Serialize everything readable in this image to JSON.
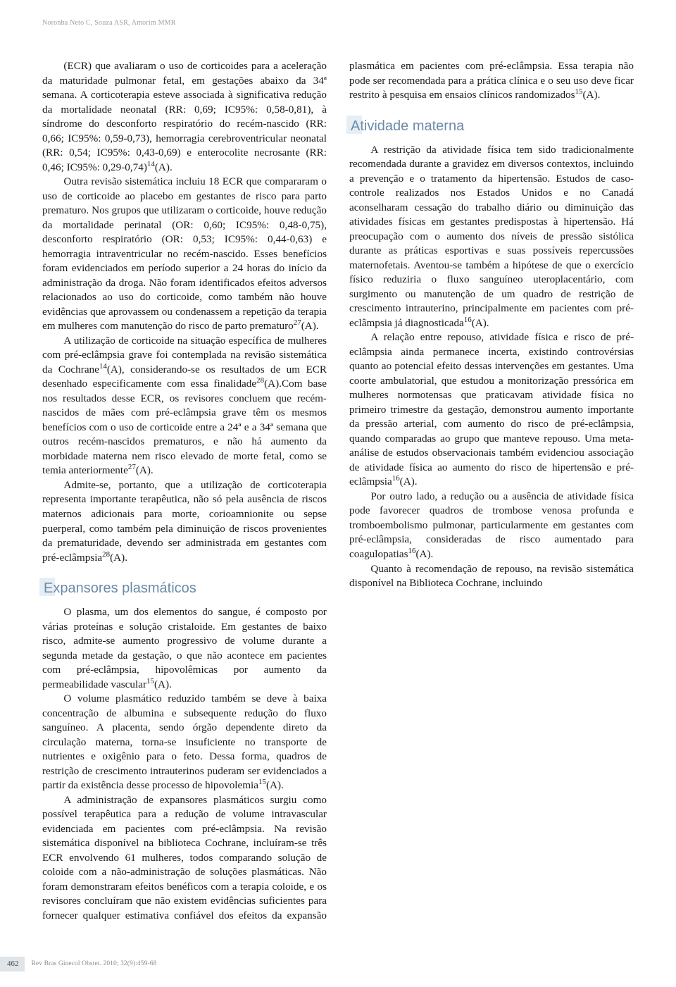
{
  "runningHead": "Noronha Neto C, Souza ASR, Amorim MMR",
  "page": "462",
  "journal": "Rev Bras Ginecol Obstet. 2010; 32(9):459-68",
  "colors": {
    "headingText": "#6b8aa8",
    "headingHighlight": "#e6eef5",
    "bodyText": "#1a1a1a",
    "runningHead": "#a0a0a0",
    "footerText": "#8a8a8a",
    "pageBox": "#dfe4e8",
    "background": "#ffffff"
  },
  "typography": {
    "bodyFont": "Garamond/Georgia serif",
    "headingFont": "Trebuchet MS / sans-serif",
    "bodySizePt": 11,
    "headingSizePt": 15,
    "runningHeadSizePt": 7,
    "footerSizePt": 7
  },
  "headings": {
    "h1": "Expansores plasmáticos",
    "h2": "Atividade materna"
  },
  "paragraphs": {
    "p1a": "(ECR) que avaliaram o uso de corticoides para a aceleração da maturidade pulmonar fetal, em gestações abaixo da 34ª semana. A corticoterapia esteve associada à significativa redução da mortalidade neonatal (RR: 0,69; IC95%: 0,58-0,81), à síndrome do desconforto respiratório do recém-nascido (RR: 0,66; IC95%: 0,59-0,73), hemorragia cerebroventricular neonatal (RR: 0,54; IC95%: 0,43-0,69) e enterocolite necrosante (RR: 0,46; IC95%: 0,29-0,74)",
    "p1b": "(A).",
    "p2a": "Outra revisão sistemática incluiu 18 ECR que compararam o uso de corticoide ao placebo em gestantes de risco para parto prematuro. Nos grupos que utilizaram o corticoide, houve redução da mortalidade perinatal (OR: 0,60; IC95%: 0,48-0,75), desconforto respiratório (OR: 0,53; IC95%: 0,44-0,63) e hemorragia intraventricular no recém-nascido. Esses benefícios foram evidenciados em período superior a 24 horas do início da administração da droga. Não foram identificados efeitos adversos relacionados ao uso do corticoide, como também não houve evidências que aprovassem ou condenassem a repetição da terapia em mulheres com manutenção do risco de parto prematuro",
    "p2b": "(A).",
    "p3a": "A utilização de corticoide na situação específica de mulheres com pré-eclâmpsia grave foi contemplada na revisão sistemática da Cochrane",
    "p3b": "(A), considerando-se os resultados de um ECR desenhado especificamente com essa finalidade",
    "p3c": "(A).Com base nos resultados desse ECR, os revisores concluem que recém-nascidos de mães com pré-eclâmpsia grave têm os mesmos benefícios com o uso de corticoide entre a 24ª e a 34ª semana que outros recém-nascidos prematuros, e não há aumento da morbidade materna nem risco elevado de morte fetal, como se temia anteriormente",
    "p3d": "(A).",
    "p4a": "Admite-se, portanto, que a utilização de corticoterapia representa importante terapêutica, não só pela ausência de riscos maternos adicionais para morte, corioamnionite ou sepse puerperal, como também pela diminuição de riscos provenientes da prematuridade, devendo ser administrada em gestantes com pré-eclâmpsia",
    "p4b": "(A).",
    "p5a": "O plasma, um dos elementos do sangue, é composto por várias proteínas e solução cristaloide. Em gestantes de baixo risco, admite-se aumento progressivo de volume durante a segunda metade da gestação, o que não acontece em pacientes com pré-eclâmpsia, hipovolêmicas por aumento da permeabilidade vascular",
    "p5b": "(A).",
    "p6a": "O volume plasmático reduzido também se deve à baixa concentração de albumina e subsequente redução do fluxo sanguíneo. A placenta, sendo órgão dependente direto da circulação materna, torna-se insuficiente no transporte de nutrientes e oxigênio para o feto. Dessa ",
    "p6b": "forma, quadros de restrição de crescimento intrauterinos puderam ser evidenciados a partir da existência desse processo de hipovolemia",
    "p6c": "(A).",
    "p7a": "A administração de expansores plasmáticos surgiu como possível terapêutica para a redução de volume intravascular evidenciada em pacientes com pré-eclâmpsia. Na revisão sistemática disponível na biblioteca Cochrane, incluíram-se três ECR envolvendo 61 mulheres, todos comparando solução de coloide com a não-administração de soluções plasmáticas. Não foram demonstraram efeitos benéficos com a terapia coloide, e os revisores concluíram que não existem evidências suficientes para fornecer qualquer estimativa confiável dos efeitos da expansão plasmática em pacientes com pré-eclâmpsia. Essa terapia não pode ser recomendada para a prática clínica e o seu uso deve ficar restrito à pesquisa em ensaios clínicos randomizados",
    "p7b": "(A).",
    "p8a": "A restrição da atividade física tem sido tradicionalmente recomendada durante a gravidez em diversos contextos, incluindo a prevenção e o tratamento da hipertensão. Estudos de caso-controle realizados nos Estados Unidos e no Canadá aconselharam cessação do trabalho diário ou diminuição das atividades físicas em gestantes predispostas à hipertensão. Há preocupação com o aumento dos níveis de pressão sistólica durante as práticas esportivas e suas possíveis repercussões maternofetais. Aventou-se também a hipótese de que o exercício físico reduziria o fluxo sanguíneo uteroplacentário, com surgimento ou manutenção de um quadro de restrição de crescimento intrauterino, principalmente em pacientes com pré-eclâmpsia já diagnosticada",
    "p8b": "(A).",
    "p9a": "A relação entre repouso, atividade física e risco de pré-eclâmpsia ainda permanece incerta, existindo controvérsias quanto ao potencial efeito dessas intervenções em gestantes. Uma coorte ambulatorial, que estudou a monitorização pressórica em mulheres normotensas que praticavam atividade física no primeiro trimestre da gestação, demonstrou aumento importante da pressão arterial, com aumento do risco de pré-eclâmpsia, quando comparadas ao grupo que manteve repouso. Uma meta-análise de estudos observacionais também evidenciou associação de atividade física ao aumento do risco de hipertensão e pré-eclâmpsia",
    "p9b": "(A).",
    "p10a": "Por outro lado, a redução ou a ausência de atividade física pode favorecer quadros de trombose venosa profunda e tromboembolismo pulmonar, particularmente em gestantes com pré-eclâmpsia, consideradas de risco aumentado para coagulopatias",
    "p10b": "(A).",
    "p11": "Quanto à recomendação de repouso, na revisão sistemática disponível na Biblioteca Cochrane, incluindo"
  },
  "superscripts": {
    "s14": "14",
    "s15": "15",
    "s16": "16",
    "s27": "27",
    "s28": "28"
  }
}
